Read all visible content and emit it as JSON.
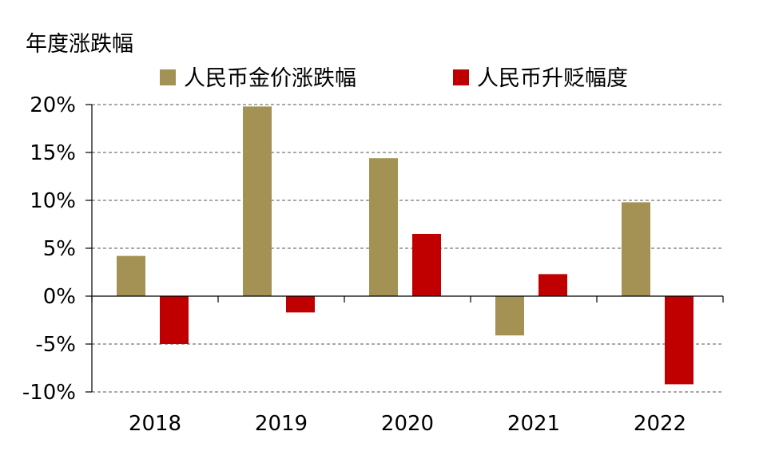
{
  "chart_data": {
    "type": "bar",
    "ylabel": "年度涨跌幅",
    "categories": [
      "2018",
      "2019",
      "2020",
      "2021",
      "2022"
    ],
    "series": [
      {
        "name": "人民币金价涨跌幅",
        "color": "#A39254",
        "values": [
          4.2,
          19.8,
          14.4,
          -4.1,
          9.8
        ]
      },
      {
        "name": "人民币升贬幅度",
        "color": "#C00000",
        "values": [
          -5.0,
          -1.7,
          6.5,
          2.3,
          -9.2
        ]
      }
    ],
    "ylim": [
      -10,
      20
    ],
    "yticks": [
      "20%",
      "15%",
      "10%",
      "5%",
      "0%",
      "-5%",
      "-10%"
    ],
    "ytick_values": [
      20,
      15,
      10,
      5,
      0,
      -5,
      -10
    ],
    "grid": true,
    "legend_position": "top"
  }
}
